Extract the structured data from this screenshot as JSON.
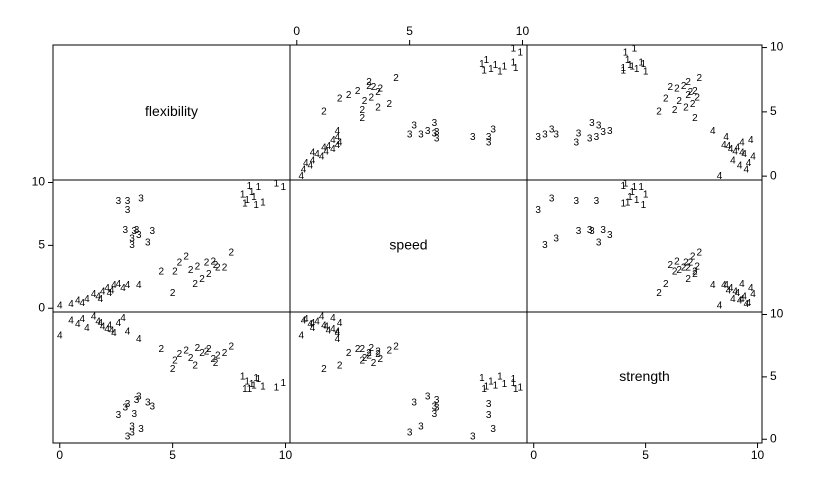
{
  "chart_data": {
    "type": "scatter-matrix",
    "variables": [
      {
        "name": "flexibility",
        "values": [
          8.1,
          8.3,
          8.5,
          8.6,
          8.8,
          9.0,
          8.2,
          9.6,
          9.9,
          8.4,
          8.7,
          5.0,
          5.1,
          5.3,
          5.6,
          5.8,
          6.1,
          6.3,
          6.5,
          6.6,
          6.8,
          7.0,
          7.3,
          7.6,
          6.0,
          6.9,
          4.5,
          2.6,
          2.9,
          3.0,
          3.2,
          3.3,
          3.5,
          3.0,
          3.6,
          4.1,
          3.9,
          3.4,
          3.2,
          0.0,
          0.5,
          0.8,
          1.0,
          1.2,
          1.5,
          1.7,
          1.9,
          2.1,
          2.2,
          2.4,
          2.6,
          2.8,
          3.0,
          3.5,
          1.8,
          2.3
        ],
        "lim": [
          -0.3,
          10.2
        ],
        "ticks": [
          0,
          5,
          10
        ]
      },
      {
        "name": "speed",
        "values": [
          9.0,
          8.6,
          9.2,
          8.8,
          9.6,
          8.4,
          8.3,
          9.9,
          9.6,
          9.7,
          8.2,
          1.2,
          2.9,
          3.6,
          4.1,
          3.0,
          3.3,
          2.3,
          3.6,
          2.7,
          3.7,
          3.2,
          3.2,
          4.4,
          1.9,
          3.4,
          2.9,
          8.5,
          6.2,
          8.5,
          5.5,
          6.1,
          5.8,
          7.8,
          8.7,
          6.1,
          5.2,
          6.2,
          5.0,
          0.2,
          0.3,
          0.6,
          0.4,
          0.7,
          1.1,
          0.9,
          1.3,
          1.6,
          1.2,
          1.8,
          1.9,
          1.6,
          1.8,
          1.8,
          0.7,
          1.4
        ],
        "lim": [
          -0.3,
          10.2
        ],
        "ticks": [
          0,
          5,
          10
        ]
      },
      {
        "name": "strength",
        "values": [
          5.0,
          4.6,
          4.4,
          4.3,
          4.8,
          4.2,
          4.0,
          4.1,
          4.5,
          4.0,
          4.9,
          5.6,
          6.3,
          6.8,
          7.1,
          6.5,
          7.3,
          6.9,
          7.0,
          7.2,
          6.4,
          6.7,
          6.9,
          7.4,
          5.9,
          6.1,
          7.2,
          1.9,
          2.5,
          2.8,
          1.0,
          2.0,
          3.4,
          0.2,
          0.8,
          2.6,
          2.9,
          3.1,
          0.5,
          8.3,
          9.5,
          9.2,
          9.6,
          8.9,
          9.8,
          9.4,
          9.0,
          8.8,
          9.1,
          8.5,
          9.3,
          9.7,
          8.6,
          8.0,
          9.3,
          8.7
        ],
        "lim": [
          -0.3,
          10.2
        ],
        "ticks": [
          0,
          5,
          10
        ]
      }
    ],
    "marker_labels": [
      "1",
      "1",
      "1",
      "1",
      "1",
      "1",
      "1",
      "1",
      "1",
      "1",
      "1",
      "2",
      "2",
      "2",
      "2",
      "2",
      "2",
      "2",
      "2",
      "2",
      "2",
      "2",
      "2",
      "2",
      "2",
      "2",
      "2",
      "3",
      "3",
      "3",
      "3",
      "3",
      "3",
      "3",
      "3",
      "3",
      "3",
      "3",
      "3",
      "4",
      "4",
      "4",
      "4",
      "4",
      "4",
      "4",
      "4",
      "4",
      "4",
      "4",
      "4",
      "4",
      "4",
      "4",
      "4",
      "4"
    ]
  }
}
